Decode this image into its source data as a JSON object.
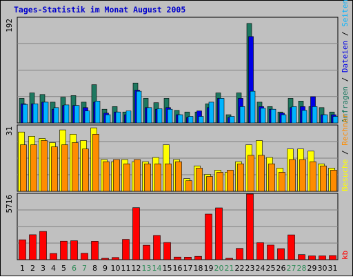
{
  "title": "Tages-Statistik im Monat August 2005",
  "colors": {
    "background": "#c0c0c0",
    "title": "#0000cc",
    "anfragen": "#1e7860",
    "dateien": "#0000e6",
    "seiten": "#00b4ff",
    "besuche": "#ffff00",
    "rechner": "#ff8c00",
    "kb": "#ff0000",
    "weekend_label": "#2e8b57",
    "weekday_label": "#000000"
  },
  "legend": {
    "top": [
      "Anfragen",
      "Dateien",
      "Seiten"
    ],
    "middle": [
      "Besuche",
      "Rechner"
    ],
    "bottom": [
      "kb"
    ]
  },
  "chart_data": [
    {
      "type": "bar",
      "axis_max_label": "192",
      "ylim": [
        0,
        192
      ],
      "categories": [
        "1",
        "2",
        "3",
        "4",
        "5",
        "6",
        "7",
        "8",
        "9",
        "10",
        "11",
        "12",
        "13",
        "14",
        "15",
        "16",
        "17",
        "18",
        "19",
        "20",
        "21",
        "22",
        "23",
        "24",
        "25",
        "26",
        "27",
        "28",
        "29",
        "30",
        "31"
      ],
      "weekend": [
        "6",
        "7",
        "13",
        "14",
        "20",
        "21",
        "27",
        "28"
      ],
      "series": [
        {
          "name": "Anfragen",
          "values": [
            45,
            55,
            52,
            38,
            47,
            50,
            38,
            70,
            25,
            30,
            20,
            73,
            45,
            37,
            45,
            23,
            20,
            20,
            35,
            55,
            15,
            55,
            182,
            38,
            30,
            20,
            45,
            40,
            30,
            28,
            20
          ]
        },
        {
          "name": "Dateien",
          "values": [
            35,
            35,
            38,
            25,
            32,
            32,
            28,
            38,
            18,
            20,
            15,
            60,
            28,
            25,
            28,
            15,
            10,
            22,
            28,
            45,
            10,
            45,
            158,
            30,
            25,
            18,
            28,
            30,
            48,
            15,
            15
          ]
        },
        {
          "name": "Seiten",
          "values": [
            34,
            35,
            38,
            28,
            33,
            32,
            22,
            40,
            15,
            20,
            22,
            58,
            28,
            26,
            25,
            15,
            12,
            12,
            38,
            45,
            12,
            30,
            58,
            27,
            25,
            15,
            30,
            23,
            30,
            15,
            12
          ]
        }
      ]
    },
    {
      "type": "bar",
      "axis_max_label": "31",
      "ylim": [
        0,
        31
      ],
      "categories": [
        "1",
        "2",
        "3",
        "4",
        "5",
        "6",
        "7",
        "8",
        "9",
        "10",
        "11",
        "12",
        "13",
        "14",
        "15",
        "16",
        "17",
        "18",
        "19",
        "20",
        "21",
        "22",
        "23",
        "24",
        "25",
        "26",
        "27",
        "28",
        "29",
        "30",
        "31"
      ],
      "series": [
        {
          "name": "Besuche",
          "values": [
            28,
            26,
            25,
            23,
            29,
            27,
            24,
            30,
            15,
            14,
            15,
            14,
            14,
            16,
            22,
            15,
            6,
            12,
            8,
            10,
            9,
            14,
            22,
            24,
            16,
            11,
            20,
            20,
            19,
            13,
            11
          ]
        },
        {
          "name": "Rechner",
          "values": [
            22,
            22,
            24,
            21,
            22,
            23,
            20,
            27,
            14,
            15,
            13,
            15,
            13,
            13,
            13,
            14,
            5,
            11,
            7,
            9,
            10,
            13,
            17,
            17,
            13,
            9,
            15,
            15,
            14,
            12,
            10
          ]
        }
      ]
    },
    {
      "type": "bar",
      "axis_max_label": "5716",
      "ylim": [
        0,
        5716
      ],
      "categories": [
        "1",
        "2",
        "3",
        "4",
        "5",
        "6",
        "7",
        "8",
        "9",
        "10",
        "11",
        "12",
        "13",
        "14",
        "15",
        "16",
        "17",
        "18",
        "19",
        "20",
        "21",
        "22",
        "23",
        "24",
        "25",
        "26",
        "27",
        "28",
        "29",
        "30",
        "31"
      ],
      "series": [
        {
          "name": "kb",
          "values": [
            1730,
            2170,
            2460,
            540,
            1610,
            1650,
            560,
            1600,
            120,
            190,
            1770,
            4530,
            1260,
            2110,
            1500,
            230,
            220,
            290,
            3970,
            4510,
            120,
            980,
            5716,
            1480,
            1270,
            960,
            2160,
            440,
            330,
            330,
            360
          ]
        }
      ]
    }
  ]
}
